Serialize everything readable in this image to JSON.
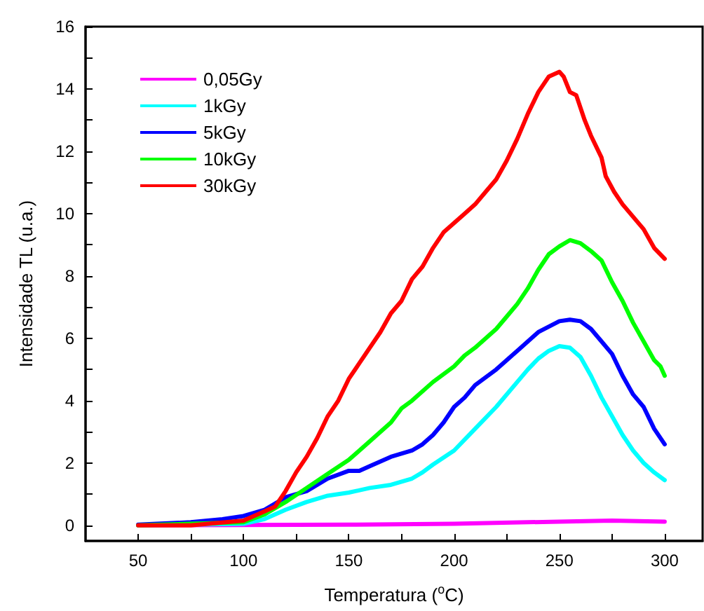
{
  "chart_data": {
    "type": "line",
    "xlabel": "Temperatura ($^{o}$C)",
    "ylabel": "Intensidade TL (u.a.)",
    "xlim": [
      25,
      318
    ],
    "ylim": [
      -0.5,
      16
    ],
    "xticks": [
      50,
      {
        "value": 75,
        "label": null
      },
      100,
      {
        "value": 125,
        "label": null
      },
      150,
      {
        "value": 175,
        "label": null
      },
      200,
      {
        "value": 225,
        "label": null
      },
      250,
      {
        "value": 275,
        "label": null
      },
      300
    ],
    "yticks": [
      0,
      {
        "value": 1,
        "label": null
      },
      2,
      {
        "value": 3,
        "label": null
      },
      4,
      {
        "value": 5,
        "label": null
      },
      6,
      {
        "value": 7,
        "label": null
      },
      8,
      {
        "value": 9,
        "label": null
      },
      10,
      {
        "value": 11,
        "label": null
      },
      12,
      {
        "value": 13,
        "label": null
      },
      14,
      {
        "value": 15,
        "label": null
      },
      16
    ],
    "grid": false,
    "legend": "top left",
    "marker": "none",
    "line_style": "solid",
    "series": [
      {
        "name": "0,05Gy",
        "color": "#ff00ff",
        "x": [
          50,
          100,
          150,
          200,
          250,
          275,
          300
        ],
        "values": [
          0,
          0.01,
          0.02,
          0.05,
          0.12,
          0.15,
          0.12
        ]
      },
      {
        "name": "1kGy",
        "color": "#00ffff",
        "x": [
          50,
          100,
          110,
          120,
          130,
          140,
          150,
          160,
          170,
          180,
          185,
          190,
          200,
          210,
          220,
          230,
          235,
          240,
          245,
          250,
          255,
          260,
          265,
          270,
          275,
          280,
          285,
          290,
          295,
          300
        ],
        "values": [
          0,
          0.05,
          0.2,
          0.5,
          0.75,
          0.95,
          1.05,
          1.2,
          1.3,
          1.5,
          1.7,
          1.95,
          2.4,
          3.1,
          3.8,
          4.6,
          5.0,
          5.35,
          5.6,
          5.75,
          5.7,
          5.4,
          4.8,
          4.1,
          3.5,
          2.9,
          2.4,
          2.0,
          1.7,
          1.45
        ]
      },
      {
        "name": "5kGy",
        "color": "#0000ff",
        "x": [
          50,
          75,
          90,
          100,
          110,
          120,
          130,
          140,
          150,
          155,
          160,
          170,
          180,
          185,
          190,
          195,
          200,
          205,
          210,
          220,
          225,
          230,
          240,
          250,
          255,
          260,
          265,
          270,
          275,
          280,
          285,
          290,
          295,
          300
        ],
        "values": [
          0.02,
          0.1,
          0.2,
          0.3,
          0.5,
          0.9,
          1.1,
          1.5,
          1.75,
          1.75,
          1.9,
          2.2,
          2.4,
          2.6,
          2.9,
          3.3,
          3.8,
          4.1,
          4.5,
          5.0,
          5.3,
          5.6,
          6.2,
          6.55,
          6.6,
          6.55,
          6.3,
          5.9,
          5.5,
          4.8,
          4.2,
          3.8,
          3.1,
          2.6
        ]
      },
      {
        "name": "10kGy",
        "color": "#00ff00",
        "x": [
          50,
          100,
          110,
          120,
          130,
          140,
          150,
          160,
          170,
          175,
          180,
          190,
          200,
          205,
          210,
          220,
          225,
          230,
          235,
          240,
          245,
          250,
          255,
          260,
          265,
          270,
          275,
          280,
          285,
          290,
          295,
          298,
          300
        ],
        "values": [
          0,
          0.1,
          0.35,
          0.75,
          1.2,
          1.65,
          2.1,
          2.7,
          3.3,
          3.75,
          4.0,
          4.6,
          5.1,
          5.45,
          5.7,
          6.3,
          6.7,
          7.1,
          7.6,
          8.2,
          8.7,
          8.95,
          9.15,
          9.05,
          8.8,
          8.5,
          7.8,
          7.2,
          6.5,
          5.9,
          5.3,
          5.1,
          4.8
        ]
      },
      {
        "name": "30kGy",
        "color": "#ff0000",
        "x": [
          50,
          75,
          100,
          110,
          115,
          120,
          125,
          130,
          135,
          140,
          145,
          150,
          155,
          160,
          165,
          170,
          175,
          180,
          185,
          190,
          195,
          200,
          205,
          210,
          215,
          220,
          225,
          230,
          235,
          240,
          245,
          250,
          252,
          255,
          258,
          262,
          265,
          270,
          272,
          276,
          280,
          285,
          290,
          295,
          300
        ],
        "values": [
          0,
          0,
          0.15,
          0.45,
          0.6,
          1.1,
          1.7,
          2.2,
          2.8,
          3.5,
          4.0,
          4.7,
          5.2,
          5.7,
          6.2,
          6.8,
          7.2,
          7.9,
          8.3,
          8.9,
          9.4,
          9.7,
          10.0,
          10.3,
          10.7,
          11.1,
          11.7,
          12.4,
          13.2,
          13.9,
          14.4,
          14.55,
          14.4,
          13.9,
          13.8,
          13.0,
          12.5,
          11.8,
          11.2,
          10.7,
          10.3,
          9.9,
          9.5,
          8.9,
          8.55
        ]
      }
    ]
  }
}
